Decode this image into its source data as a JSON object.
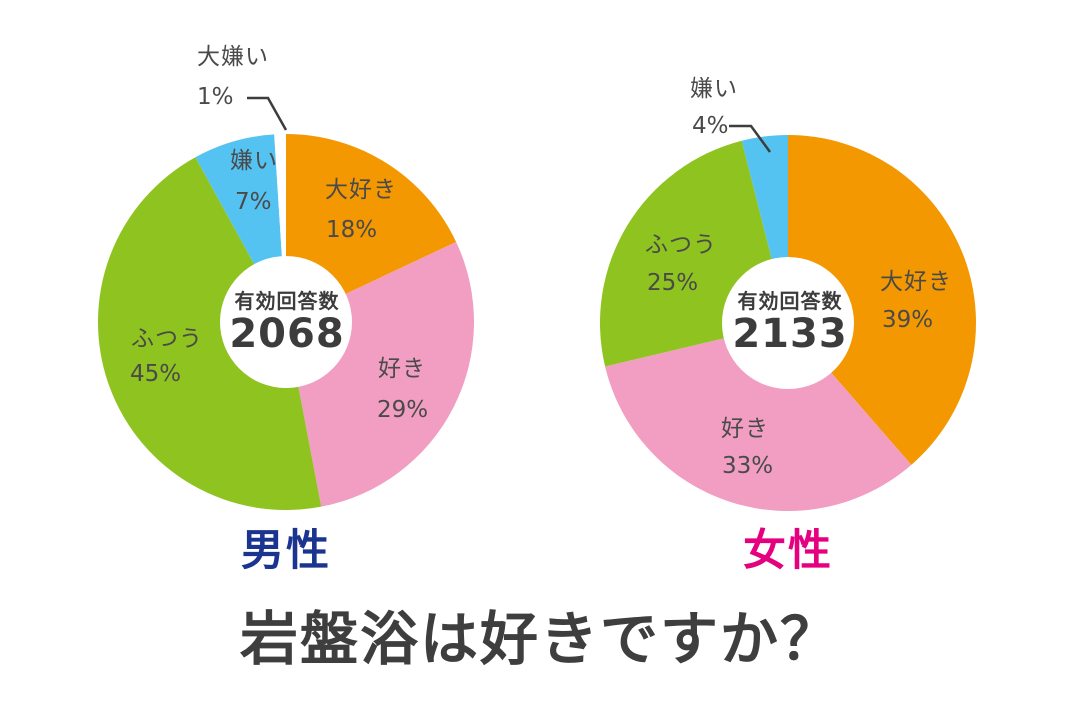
{
  "question": "岩盤浴は好きですか？",
  "colors": {
    "love": "#F39800",
    "like": "#F19EC2",
    "neutral": "#8FC31F",
    "dislike": "#54C3F1",
    "hate": "#FFFFFF",
    "male_label": "#1b3490",
    "female_label": "#e4007f",
    "text": "#4a4a4a"
  },
  "chart_data": [
    {
      "type": "pie",
      "title": "男性",
      "center_label": "有効回答数",
      "center_value": "2068",
      "categories": [
        "大好き",
        "好き",
        "ふつう",
        "嫌い",
        "大嫌い"
      ],
      "values": [
        18,
        29,
        45,
        7,
        1
      ],
      "pct_labels": [
        "18%",
        "29%",
        "45%",
        "7%",
        "1%"
      ],
      "unit": "%",
      "colors": [
        "#F39800",
        "#F19EC2",
        "#8FC31F",
        "#54C3F1",
        "#FFFFFF"
      ],
      "legend_position": "around-slices",
      "donut": true
    },
    {
      "type": "pie",
      "title": "女性",
      "center_label": "有効回答数",
      "center_value": "2133",
      "categories": [
        "大好き",
        "好き",
        "ふつう",
        "嫌い"
      ],
      "values": [
        39,
        33,
        25,
        4
      ],
      "pct_labels": [
        "39%",
        "33%",
        "25%",
        "4%"
      ],
      "unit": "%",
      "colors": [
        "#F39800",
        "#F19EC2",
        "#8FC31F",
        "#54C3F1"
      ],
      "legend_position": "around-slices",
      "donut": true
    }
  ]
}
